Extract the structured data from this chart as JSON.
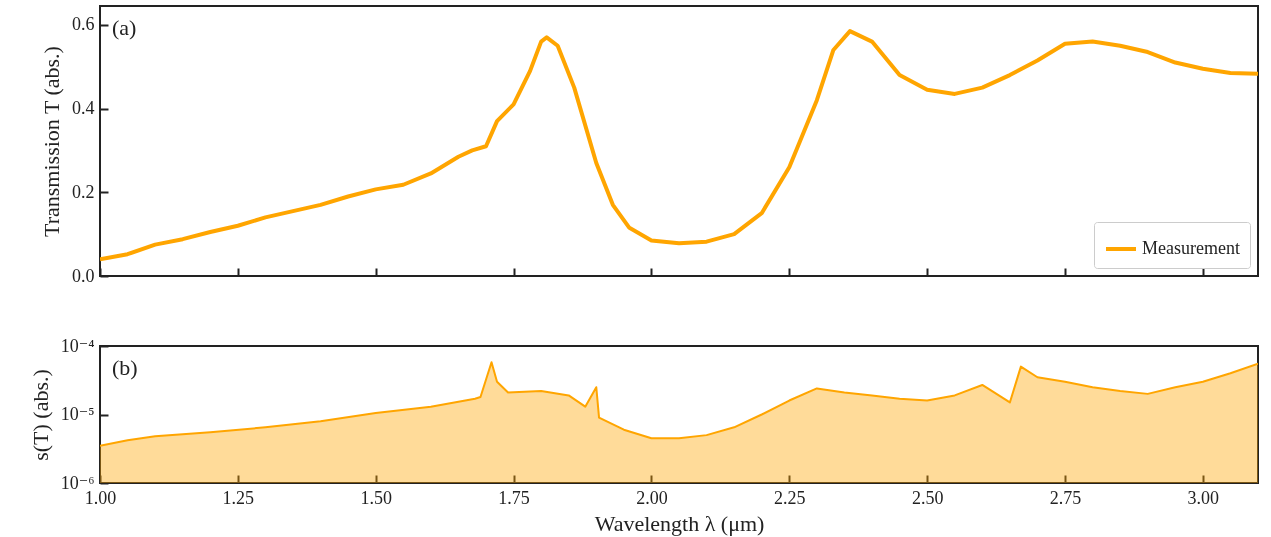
{
  "chart_data": [
    {
      "type": "line",
      "ylabel": "Transmission T (abs.)",
      "annotations": [
        "(a)"
      ],
      "legend": "bottom right",
      "tick_labels": "y",
      "xlim": [
        1.0,
        3.1
      ],
      "xticks": [
        {
          "value": 1.0,
          "label": null
        },
        {
          "value": 1.25,
          "label": null
        },
        {
          "value": 1.5,
          "label": null
        },
        {
          "value": 1.75,
          "label": null
        },
        {
          "value": 2.0,
          "label": null
        },
        {
          "value": 2.25,
          "label": null
        },
        {
          "value": 2.5,
          "label": null
        },
        {
          "value": 2.75,
          "label": null
        },
        {
          "value": 3.0,
          "label": null
        }
      ],
      "ylim": [
        0,
        0.645
      ],
      "yticks": [
        {
          "value": 0,
          "label": "0.0"
        },
        {
          "value": 0.2,
          "label": "0.2"
        },
        {
          "value": 0.4,
          "label": "0.4"
        },
        {
          "value": 0.6,
          "label": "0.6"
        }
      ],
      "x": [
        1.0,
        1.05,
        1.1,
        1.15,
        1.2,
        1.25,
        1.3,
        1.35,
        1.4,
        1.45,
        1.5,
        1.55,
        1.6,
        1.65,
        1.675,
        1.7,
        1.72,
        1.75,
        1.78,
        1.8,
        1.81,
        1.83,
        1.86,
        1.9,
        1.93,
        1.96,
        2.0,
        2.05,
        2.1,
        2.15,
        2.2,
        2.25,
        2.3,
        2.33,
        2.36,
        2.4,
        2.45,
        2.5,
        2.55,
        2.6,
        2.65,
        2.7,
        2.75,
        2.8,
        2.85,
        2.9,
        2.95,
        3.0,
        3.05,
        3.1
      ],
      "series": [
        {
          "name": "Measurement",
          "color": "#ffa500",
          "values": [
            0.04,
            0.052,
            0.075,
            0.088,
            0.105,
            0.12,
            0.14,
            0.155,
            0.17,
            0.19,
            0.207,
            0.218,
            0.245,
            0.285,
            0.3,
            0.31,
            0.37,
            0.41,
            0.49,
            0.56,
            0.57,
            0.55,
            0.45,
            0.27,
            0.17,
            0.115,
            0.085,
            0.078,
            0.082,
            0.1,
            0.15,
            0.26,
            0.42,
            0.54,
            0.585,
            0.56,
            0.48,
            0.445,
            0.435,
            0.45,
            0.48,
            0.515,
            0.555,
            0.56,
            0.55,
            0.535,
            0.51,
            0.495,
            0.485,
            0.483
          ]
        }
      ]
    },
    {
      "type": "area",
      "ylabel": "s(T) (abs.)",
      "xlabel": "Wavelength λ (μm)",
      "annotations": [
        "(b)"
      ],
      "log": "y",
      "xlim": [
        1.0,
        3.1
      ],
      "xticks": [
        {
          "value": 1.0,
          "label": "1.00"
        },
        {
          "value": 1.25,
          "label": "1.25"
        },
        {
          "value": 1.5,
          "label": "1.50"
        },
        {
          "value": 1.75,
          "label": "1.75"
        },
        {
          "value": 2.0,
          "label": "2.00"
        },
        {
          "value": 2.25,
          "label": "2.25"
        },
        {
          "value": 2.5,
          "label": "2.50"
        },
        {
          "value": 2.75,
          "label": "2.75"
        },
        {
          "value": 3.0,
          "label": "3.00"
        }
      ],
      "ylim": [
        1e-06,
        0.0001
      ],
      "yticks": [
        {
          "value": 1e-06,
          "label": "10⁻⁶"
        },
        {
          "value": 1e-05,
          "label": "10⁻⁵"
        },
        {
          "value": 0.0001,
          "label": "10⁻⁴"
        }
      ],
      "x": [
        1.0,
        1.05,
        1.1,
        1.2,
        1.3,
        1.4,
        1.5,
        1.6,
        1.68,
        1.69,
        1.71,
        1.72,
        1.74,
        1.8,
        1.85,
        1.88,
        1.9,
        1.905,
        1.95,
        2.0,
        2.05,
        2.1,
        2.15,
        2.2,
        2.25,
        2.3,
        2.35,
        2.4,
        2.45,
        2.5,
        2.55,
        2.6,
        2.65,
        2.67,
        2.7,
        2.75,
        2.8,
        2.85,
        2.9,
        2.95,
        3.0,
        3.05,
        3.1
      ],
      "series": [
        {
          "color": "#ffa500",
          "values": [
            3.5e-06,
            4.2e-06,
            4.8e-06,
            5.5e-06,
            6.5e-06,
            8e-06,
            1.05e-05,
            1.3e-05,
            1.7e-05,
            1.8e-05,
            5.8e-05,
            3e-05,
            2.1e-05,
            2.2e-05,
            1.9e-05,
            1.3e-05,
            2.5e-05,
            9e-06,
            6e-06,
            4.5e-06,
            4.5e-06,
            5e-06,
            6.5e-06,
            1e-05,
            1.6e-05,
            2.4e-05,
            2.1e-05,
            1.9e-05,
            1.7e-05,
            1.6e-05,
            1.9e-05,
            2.7e-05,
            1.5e-05,
            5e-05,
            3.5e-05,
            3e-05,
            2.5e-05,
            2.2e-05,
            2e-05,
            2.5e-05,
            3e-05,
            4e-05,
            5.5e-05
          ]
        }
      ]
    }
  ]
}
